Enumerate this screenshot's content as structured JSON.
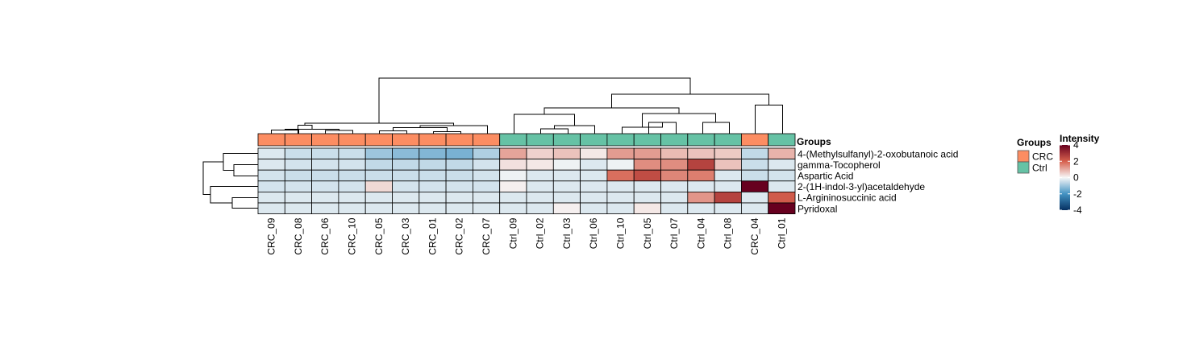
{
  "chart_data": {
    "type": "heatmap",
    "annotation_title": "Groups",
    "columns": [
      "CRC_09",
      "CRC_08",
      "CRC_06",
      "CRC_10",
      "CRC_05",
      "CRC_03",
      "CRC_01",
      "CRC_02",
      "CRC_07",
      "Ctrl_09",
      "Ctrl_02",
      "Ctrl_03",
      "Ctrl_06",
      "Ctrl_10",
      "Ctrl_05",
      "Ctrl_07",
      "Ctrl_04",
      "Ctrl_08",
      "CRC_04",
      "Ctrl_01"
    ],
    "column_groups": [
      "CRC",
      "CRC",
      "CRC",
      "CRC",
      "CRC",
      "CRC",
      "CRC",
      "CRC",
      "CRC",
      "Ctrl",
      "Ctrl",
      "Ctrl",
      "Ctrl",
      "Ctrl",
      "Ctrl",
      "Ctrl",
      "Ctrl",
      "Ctrl",
      "CRC",
      "Ctrl"
    ],
    "rows": [
      "4-(Methylsulfanyl)-2-oxobutanoic acid",
      "gamma-Tocopherol",
      "Aspartic Acid",
      "2-(1H-indol-3-yl)acetaldehyde",
      "L-Argininosuccinic acid",
      "Pyridoxal"
    ],
    "values": [
      [
        -0.3,
        -0.5,
        -0.5,
        -0.5,
        -1.0,
        -1.2,
        -1.3,
        -1.4,
        -0.8,
        1.1,
        0.5,
        0.7,
        0.2,
        1.2,
        1.2,
        0.8,
        0.7,
        0.6,
        -0.6,
        0.9
      ],
      [
        -0.3,
        -0.4,
        -0.4,
        -0.4,
        -0.6,
        -0.6,
        -0.6,
        -0.6,
        -0.4,
        0.3,
        0.2,
        -0.1,
        -0.3,
        -0.1,
        1.4,
        1.4,
        2.6,
        0.7,
        -0.5,
        -0.3
      ],
      [
        -0.4,
        -0.5,
        -0.5,
        -0.5,
        -0.5,
        -0.5,
        -0.5,
        -0.5,
        -0.4,
        -0.1,
        -0.3,
        -0.3,
        -0.3,
        1.8,
        2.4,
        1.5,
        1.6,
        -0.3,
        -0.5,
        -0.4
      ],
      [
        -0.4,
        -0.4,
        -0.4,
        -0.4,
        0.4,
        -0.4,
        -0.4,
        -0.4,
        -0.4,
        0.1,
        -0.3,
        -0.3,
        -0.3,
        -0.3,
        -0.3,
        -0.3,
        -0.3,
        -0.3,
        4.0,
        -0.3
      ],
      [
        -0.3,
        -0.3,
        -0.3,
        -0.3,
        -0.3,
        -0.3,
        -0.3,
        -0.3,
        -0.3,
        -0.3,
        -0.3,
        -0.3,
        -0.3,
        -0.3,
        -0.3,
        -0.3,
        1.3,
        2.6,
        -0.3,
        2.1
      ],
      [
        -0.3,
        -0.3,
        -0.3,
        -0.3,
        -0.3,
        -0.3,
        -0.3,
        -0.3,
        -0.3,
        -0.3,
        -0.3,
        0.1,
        -0.3,
        -0.3,
        0.2,
        -0.3,
        -0.3,
        -0.3,
        -0.3,
        4.0
      ]
    ],
    "groups_legend": {
      "title": "Groups",
      "entries": [
        {
          "label": "CRC",
          "color": "#FC8D62"
        },
        {
          "label": "Ctrl",
          "color": "#66C2A5"
        }
      ]
    },
    "colorbar": {
      "title": "Intensity",
      "range": [
        -4,
        4
      ],
      "ticks": [
        "4",
        "2",
        "0",
        "-2",
        "-4"
      ],
      "tick_values": [
        4,
        2,
        0,
        -2,
        -4
      ],
      "colors": {
        "low": "#053061",
        "mid": "#F7F7F7",
        "high": "#67001F"
      }
    },
    "column_dendrogram": true,
    "row_dendrogram": true
  }
}
